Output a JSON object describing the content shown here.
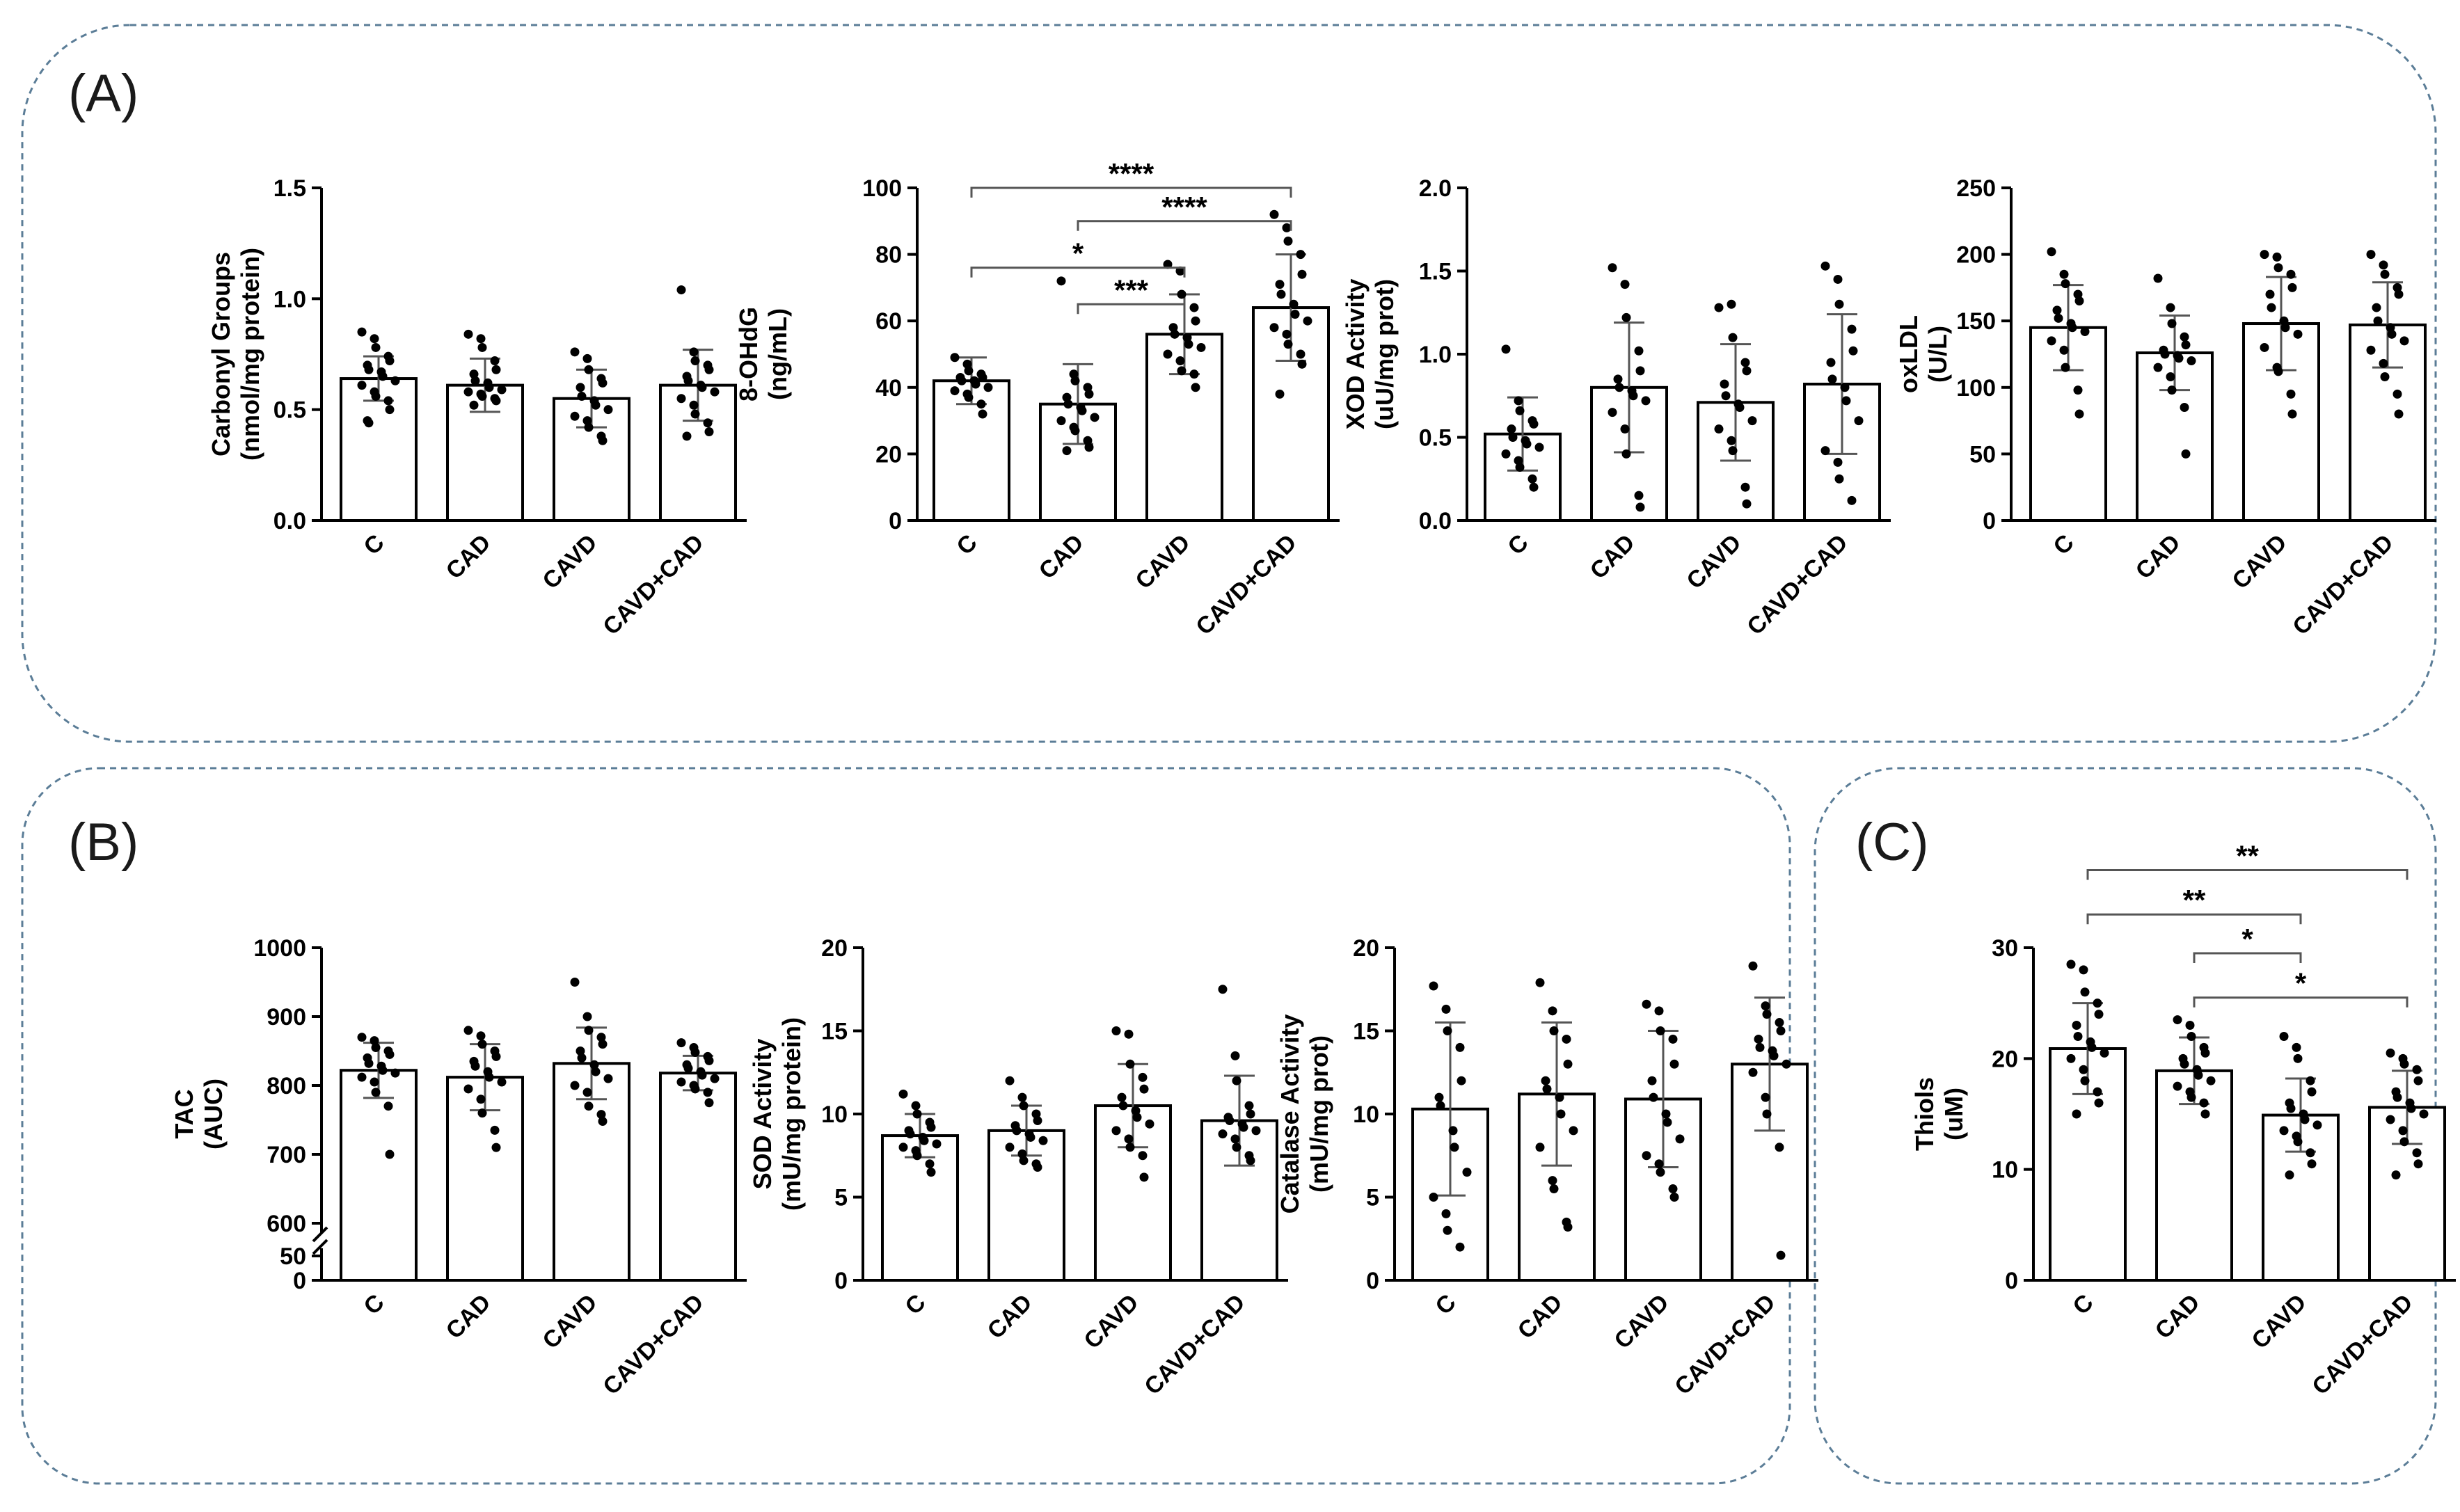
{
  "panels": [
    {
      "label": "(A)"
    },
    {
      "label": "(B)"
    },
    {
      "label": "(C)"
    }
  ],
  "chart_data": [
    {
      "type": "bar",
      "panel": "(A)",
      "ylabel": [
        "Carbonyl Groups",
        "(nmol/mg protein)"
      ],
      "categories": [
        "C",
        "CAD",
        "CAVD",
        "CAVD+CAD"
      ],
      "values": [
        0.64,
        0.61,
        0.55,
        0.61
      ],
      "sd": [
        0.1,
        0.12,
        0.13,
        0.16
      ],
      "ylim": [
        0,
        1.5
      ],
      "yticks": [
        0,
        0.5,
        1.0,
        1.5
      ],
      "ytick_labels": [
        "0.0",
        "0.5",
        "1.0",
        "1.5"
      ],
      "points": [
        [
          0.85,
          0.82,
          0.78,
          0.74,
          0.72,
          0.7,
          0.68,
          0.67,
          0.65,
          0.63,
          0.61,
          0.58,
          0.56,
          0.54,
          0.5,
          0.45,
          0.44
        ],
        [
          0.84,
          0.82,
          0.78,
          0.72,
          0.68,
          0.66,
          0.63,
          0.62,
          0.6,
          0.59,
          0.58,
          0.57,
          0.56,
          0.55,
          0.54,
          0.52
        ],
        [
          0.76,
          0.73,
          0.68,
          0.64,
          0.62,
          0.6,
          0.56,
          0.54,
          0.52,
          0.5,
          0.47,
          0.45,
          0.42,
          0.38,
          0.36
        ],
        [
          1.04,
          0.76,
          0.72,
          0.7,
          0.68,
          0.65,
          0.63,
          0.61,
          0.6,
          0.58,
          0.55,
          0.52,
          0.48,
          0.44,
          0.4,
          0.38
        ]
      ],
      "significance": []
    },
    {
      "type": "bar",
      "panel": "(A)",
      "ylabel": [
        "8-OHdG",
        "(ng/mL)"
      ],
      "categories": [
        "C",
        "CAD",
        "CAVD",
        "CAVD+CAD"
      ],
      "values": [
        42,
        35,
        56,
        64
      ],
      "sd": [
        7,
        12,
        12,
        16
      ],
      "ylim": [
        0,
        100
      ],
      "yticks": [
        0,
        20,
        40,
        60,
        80,
        100
      ],
      "ytick_labels": [
        "0",
        "20",
        "40",
        "60",
        "80",
        "100"
      ],
      "points": [
        [
          49,
          47,
          45,
          44,
          43,
          43,
          42,
          42,
          41,
          40,
          39,
          38,
          37,
          35,
          32
        ],
        [
          72,
          44,
          42,
          40,
          38,
          37,
          35,
          34,
          33,
          31,
          30,
          28,
          27,
          24,
          22,
          21
        ],
        [
          77,
          75,
          68,
          64,
          60,
          58,
          56,
          55,
          53,
          52,
          50,
          48,
          45,
          44,
          40
        ],
        [
          92,
          88,
          84,
          80,
          74,
          71,
          68,
          65,
          62,
          60,
          58,
          56,
          53,
          50,
          47,
          38
        ]
      ],
      "significance": [
        {
          "from": 0,
          "to": 3,
          "label": "****",
          "level": 100
        },
        {
          "from": 1,
          "to": 3,
          "label": "****",
          "level": 90
        },
        {
          "from": 0,
          "to": 2,
          "label": "*",
          "level": 76
        },
        {
          "from": 1,
          "to": 2,
          "label": "***",
          "level": 65
        }
      ]
    },
    {
      "type": "bar",
      "panel": "(A)",
      "ylabel": [
        "XOD Activity",
        "(uU/mg prot)"
      ],
      "categories": [
        "C",
        "CAD",
        "CAVD",
        "CAVD+CAD"
      ],
      "values": [
        0.52,
        0.8,
        0.71,
        0.82
      ],
      "sd": [
        0.22,
        0.39,
        0.35,
        0.42
      ],
      "ylim": [
        0,
        2.0
      ],
      "yticks": [
        0,
        0.5,
        1.0,
        1.5,
        2.0
      ],
      "ytick_labels": [
        "0.0",
        "0.5",
        "1.0",
        "1.5",
        "2.0"
      ],
      "points": [
        [
          1.03,
          0.72,
          0.66,
          0.6,
          0.58,
          0.55,
          0.5,
          0.48,
          0.46,
          0.44,
          0.4,
          0.36,
          0.32,
          0.25,
          0.2
        ],
        [
          1.52,
          1.42,
          1.22,
          1.02,
          0.9,
          0.85,
          0.8,
          0.78,
          0.75,
          0.72,
          0.65,
          0.55,
          0.4,
          0.15,
          0.08
        ],
        [
          1.28,
          1.3,
          1.1,
          0.95,
          0.9,
          0.82,
          0.75,
          0.7,
          0.68,
          0.6,
          0.55,
          0.48,
          0.42,
          0.2,
          0.1
        ],
        [
          1.53,
          1.45,
          1.3,
          1.15,
          1.02,
          0.95,
          0.85,
          0.8,
          0.72,
          0.6,
          0.42,
          0.35,
          0.25,
          0.12
        ]
      ],
      "significance": []
    },
    {
      "type": "bar",
      "panel": "(A)",
      "ylabel": [
        "oxLDL",
        "(U/L)"
      ],
      "categories": [
        "C",
        "CAD",
        "CAVD",
        "CAVD+CAD"
      ],
      "values": [
        145,
        126,
        148,
        147
      ],
      "sd": [
        32,
        28,
        35,
        32
      ],
      "ylim": [
        0,
        250
      ],
      "yticks": [
        0,
        50,
        100,
        150,
        200,
        250
      ],
      "ytick_labels": [
        "0",
        "50",
        "100",
        "150",
        "200",
        "250"
      ],
      "points": [
        [
          202,
          185,
          178,
          170,
          165,
          158,
          152,
          148,
          145,
          142,
          135,
          128,
          115,
          98,
          80
        ],
        [
          182,
          160,
          148,
          138,
          132,
          128,
          125,
          124,
          122,
          120,
          115,
          108,
          98,
          85,
          50
        ],
        [
          200,
          198,
          190,
          185,
          175,
          170,
          160,
          150,
          145,
          140,
          130,
          115,
          112,
          95,
          80
        ],
        [
          200,
          192,
          185,
          175,
          170,
          160,
          150,
          145,
          140,
          135,
          128,
          118,
          108,
          95,
          80
        ]
      ],
      "significance": []
    },
    {
      "type": "bar",
      "panel": "(B)",
      "ylabel": [
        "TAC",
        "(AUC)"
      ],
      "categories": [
        "C",
        "CAD",
        "CAVD",
        "CAVD+CAD"
      ],
      "values": [
        822,
        812,
        832,
        818
      ],
      "sd": [
        40,
        48,
        52,
        25
      ],
      "ylim": [
        600,
        1000
      ],
      "axis_break": {
        "lower_ticks": [
          "50",
          "0"
        ]
      },
      "yticks": [
        600,
        700,
        800,
        900,
        1000
      ],
      "ytick_labels": [
        "600",
        "700",
        "800",
        "900",
        "1000"
      ],
      "points": [
        [
          870,
          865,
          855,
          850,
          845,
          840,
          832,
          828,
          822,
          818,
          812,
          805,
          790,
          770,
          700
        ],
        [
          880,
          872,
          860,
          850,
          842,
          835,
          828,
          820,
          812,
          805,
          795,
          780,
          760,
          735,
          710
        ],
        [
          950,
          900,
          880,
          870,
          860,
          850,
          840,
          830,
          820,
          810,
          800,
          790,
          770,
          758,
          748
        ],
        [
          862,
          855,
          848,
          842,
          836,
          830,
          825,
          820,
          815,
          810,
          805,
          800,
          795,
          790,
          775
        ]
      ],
      "significance": []
    },
    {
      "type": "bar",
      "panel": "(B)",
      "ylabel": [
        "SOD Activity",
        "(mU/mg protein)"
      ],
      "categories": [
        "C",
        "CAD",
        "CAVD",
        "CAVD+CAD"
      ],
      "values": [
        8.7,
        9.0,
        10.5,
        9.6
      ],
      "sd": [
        1.3,
        1.5,
        2.5,
        2.7
      ],
      "ylim": [
        0,
        20
      ],
      "yticks": [
        0,
        5,
        10,
        15,
        20
      ],
      "ytick_labels": [
        "0",
        "5",
        "10",
        "15",
        "20"
      ],
      "points": [
        [
          11.2,
          10.5,
          10,
          9.5,
          9.2,
          9,
          8.8,
          8.6,
          8.4,
          8.2,
          8,
          7.8,
          7.5,
          7,
          6.5
        ],
        [
          12,
          11,
          10.5,
          10,
          9.6,
          9.3,
          9,
          8.8,
          8.6,
          8.4,
          8,
          7.6,
          7.2,
          7,
          6.8
        ],
        [
          15,
          14.8,
          13,
          12.2,
          11.5,
          11,
          10.5,
          10.2,
          9.8,
          9.4,
          9,
          8.5,
          8,
          7.5,
          6.2
        ],
        [
          17.5,
          13.5,
          12,
          10.5,
          10,
          9.8,
          9.6,
          9.4,
          9.2,
          9,
          8.8,
          8.5,
          8,
          7.5,
          7.2
        ]
      ],
      "significance": []
    },
    {
      "type": "bar",
      "panel": "(B)",
      "ylabel": [
        "Catalase Activity",
        "(mU/mg prot)"
      ],
      "categories": [
        "C",
        "CAD",
        "CAVD",
        "CAVD+CAD"
      ],
      "values": [
        10.3,
        11.2,
        10.9,
        13.0
      ],
      "sd": [
        5.2,
        4.3,
        4.1,
        4.0
      ],
      "ylim": [
        0,
        20
      ],
      "yticks": [
        0,
        5,
        10,
        15,
        20
      ],
      "ytick_labels": [
        "0",
        "5",
        "10",
        "15",
        "20"
      ],
      "points": [
        [
          17.7,
          16.3,
          15,
          14,
          12,
          11,
          10.5,
          9,
          8,
          6.5,
          5,
          4,
          3,
          2
        ],
        [
          17.9,
          16.2,
          15,
          14.5,
          13,
          12,
          11.5,
          11,
          10,
          9,
          8,
          6,
          5.5,
          3.5,
          3.2
        ],
        [
          16.6,
          16.2,
          15,
          14.5,
          13,
          12,
          11,
          10,
          9.5,
          8.5,
          7.5,
          7,
          6.5,
          5.5,
          5
        ],
        [
          18.9,
          16.5,
          16,
          15.5,
          15,
          14.5,
          14,
          13.8,
          13.5,
          13,
          12.5,
          11,
          10,
          8,
          1.5
        ]
      ],
      "significance": []
    },
    {
      "type": "bar",
      "panel": "(C)",
      "ylabel": [
        "Thiols",
        "(uM)"
      ],
      "categories": [
        "C",
        "CAD",
        "CAVD",
        "CAVD+CAD"
      ],
      "values": [
        20.9,
        18.9,
        14.9,
        15.6
      ],
      "sd": [
        4.1,
        3.0,
        3.3,
        3.3
      ],
      "ylim": [
        0,
        30
      ],
      "yticks": [
        0,
        10,
        20,
        30
      ],
      "ytick_labels": [
        "0",
        "10",
        "20",
        "30"
      ],
      "points": [
        [
          28.5,
          28,
          26,
          25,
          24,
          23,
          22,
          21.5,
          21,
          20.5,
          20,
          19,
          18,
          17,
          16,
          15
        ],
        [
          23.5,
          23,
          22,
          21,
          20.5,
          20,
          19.5,
          19,
          18.5,
          18,
          17.5,
          17,
          16.5,
          16,
          15
        ],
        [
          22,
          21,
          20,
          18,
          17,
          16,
          15.5,
          15,
          14.5,
          14,
          13.5,
          13,
          12.5,
          11.5,
          10.5,
          9.5
        ],
        [
          20.5,
          20,
          19.5,
          19,
          18,
          17,
          16.5,
          16,
          15.5,
          15,
          14.5,
          13.5,
          12.5,
          11.5,
          10.5,
          9.5
        ]
      ],
      "significance": [
        {
          "from": 0,
          "to": 3,
          "label": "**",
          "level": 37
        },
        {
          "from": 0,
          "to": 2,
          "label": "**",
          "level": 33
        },
        {
          "from": 1,
          "to": 2,
          "label": "*",
          "level": 29.5
        },
        {
          "from": 1,
          "to": 3,
          "label": "*",
          "level": 25.5
        }
      ]
    }
  ]
}
